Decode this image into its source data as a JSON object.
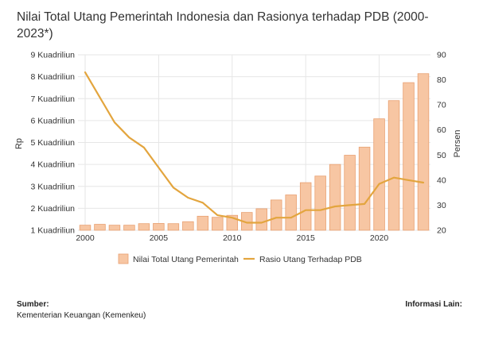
{
  "chart_data": {
    "type": "bar+line",
    "title": "Nilai Total Utang Pemerintah Indonesia dan Rasionya terhadap PDB (2000-2023*)",
    "x": [
      2000,
      2001,
      2002,
      2003,
      2004,
      2005,
      2006,
      2007,
      2008,
      2009,
      2010,
      2011,
      2012,
      2013,
      2014,
      2015,
      2016,
      2017,
      2018,
      2019,
      2020,
      2021,
      2022,
      2023
    ],
    "x_ticks": [
      "2000",
      "2005",
      "2010",
      "2015",
      "2020"
    ],
    "y_left": {
      "label": "Rp",
      "range": [
        1,
        9
      ],
      "ticks": [
        "1 Kuadriliun",
        "2 Kuadriliun",
        "3 Kuadriliun",
        "4 Kuadriliun",
        "5 Kuadriliun",
        "6 Kuadriliun",
        "7 Kuadriliun",
        "8 Kuadriliun",
        "9 Kuadriliun"
      ]
    },
    "y_right": {
      "label": "Persen",
      "range": [
        20,
        90
      ],
      "ticks": [
        "20",
        "30",
        "40",
        "50",
        "60",
        "70",
        "80",
        "90"
      ]
    },
    "series": [
      {
        "name": "Nilai Total Utang Pemerintah",
        "kind": "bar",
        "axis": "left",
        "color": "#f7c6a3",
        "stroke": "#e8a071",
        "values": [
          1.23,
          1.27,
          1.23,
          1.23,
          1.3,
          1.31,
          1.3,
          1.39,
          1.64,
          1.59,
          1.68,
          1.81,
          1.98,
          2.38,
          2.61,
          3.17,
          3.47,
          4.0,
          4.42,
          4.79,
          6.08,
          6.91,
          7.73,
          8.14
        ]
      },
      {
        "name": "Rasio Utang Terhadap PDB",
        "kind": "line",
        "axis": "right",
        "color": "#e3a53e",
        "values": [
          83,
          73,
          63,
          57,
          53,
          45,
          37,
          33,
          31,
          26,
          25,
          23,
          23,
          25,
          25,
          28,
          28,
          29.5,
          30,
          30.5,
          38.5,
          41,
          40,
          39
        ]
      }
    ],
    "grid": true,
    "legend_position": "bottom"
  },
  "footer": {
    "source_label": "Sumber:",
    "source_value": "Kementerian Keuangan (Kemenkeu)",
    "info_label": "Informasi Lain:"
  }
}
